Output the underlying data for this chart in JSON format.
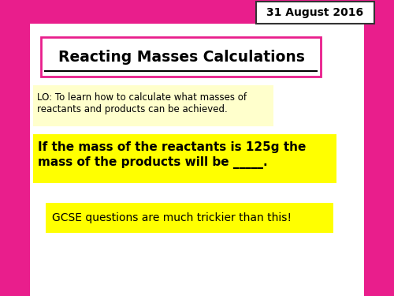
{
  "date_text": "31 August 2016",
  "title_text": "Reacting Masses Calculations",
  "lo_line1": "LO: To learn how to calculate what masses of",
  "lo_line2": "reactants and products can be achieved.",
  "main_text_line1": "If the mass of the reactants is 125g the",
  "main_text_line2": "mass of the products will be _____.",
  "gcse_text": "GCSE questions are much trickier than this!",
  "bg_color": "#ffffff",
  "pink_color": "#e91e8c",
  "light_pink": "#f48fb1",
  "pale_pink": "#fce4ec",
  "yellow_light": "#ffffcc",
  "yellow_bright": "#ffff00",
  "title_border_color": "#e91e8c",
  "date_border_color": "#333333",
  "text_color": "#000000"
}
